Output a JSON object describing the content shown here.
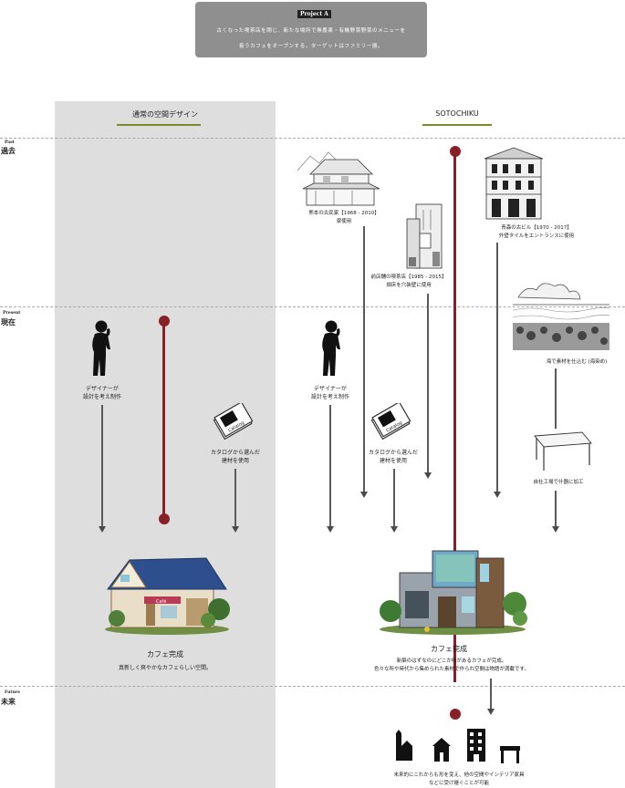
{
  "project": {
    "badge": "Project A",
    "line1": "古くなった喫茶店を閉じ、新たな場所で無農薬・有機野菜野菜のメニューを",
    "line2": "扱うカフェをオープンする。ターゲットはファミリー層。"
  },
  "columns": {
    "left": "通常の空間デザイン",
    "right": "SOTOCHIKU"
  },
  "eras": {
    "past_en": "Past",
    "past_jp": "過去",
    "present_en": "Present",
    "present_jp": "現在",
    "future_en": "Future",
    "future_jp": "未来"
  },
  "left_flow": {
    "designer_1": "デザイナーが",
    "designer_2": "設計を考え制作",
    "catalog_1": "カタログから選んだ",
    "catalog_2": "建材を使用",
    "result_title": "カフェ完成",
    "result_desc": "真新しく爽やかなカフェらしい空間。"
  },
  "right_flow": {
    "house_1": "熊本の古民家【1968 - 2010】",
    "house_2": "梁使用",
    "tower_1": "青森の古ビル【1970 - 2017】",
    "tower_2": "外壁タイルをエントランスに使用",
    "kissa_1": "前店舗の喫茶店【1985 - 2015】",
    "kissa_2": "畑床を穴装壁に使用",
    "sea_1": "海で素材を仕込む (海染め)",
    "designer_1": "デザイナーが",
    "designer_2": "設計を考え制作",
    "catalog_1": "カタログから選んだ",
    "catalog_2": "建材を使用",
    "factory_1": "自社工場で什器に加工",
    "result_title": "カフェ完成",
    "result_desc_1": "新築のはずなのにどこか味があるカフェが完成。",
    "result_desc_2": "色々な所や時代から集められた素材で作られ空間は物語が満載です。",
    "future_1": "未来的にこれからも形を変え、他の空間やインテリア家具",
    "future_2": "などに受け継ぐことが可能"
  },
  "catalog_label": "Catalog",
  "cafe_sign": "Café",
  "colors": {
    "accent_red": "#8a1f25",
    "olive_underline": "#7a8a2c",
    "gray_column": "#dedede",
    "header_box": "#8f8f8f"
  }
}
